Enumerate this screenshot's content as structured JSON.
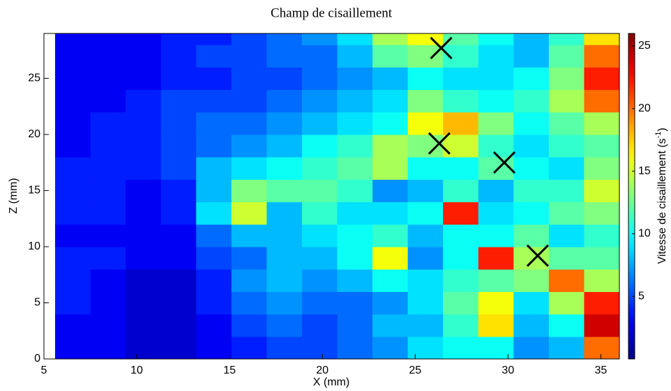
{
  "chart_data": {
    "type": "heatmap",
    "title": "Champ de cisaillement",
    "xlabel": "X (mm)",
    "ylabel": "Z (mm)",
    "colorbar_label": {
      "text": "Vitesse de cisaillement (s",
      "sup": "-1",
      "close": ")"
    },
    "colormap": "jet",
    "x": [
      6.55,
      8.45,
      10.35,
      12.25,
      14.15,
      16.05,
      17.95,
      19.85,
      21.75,
      23.65,
      25.55,
      27.45,
      29.35,
      31.25,
      33.15,
      35.05
    ],
    "y": [
      1,
      3,
      5,
      7,
      9,
      11,
      13,
      15,
      17,
      19,
      21,
      23,
      25,
      27,
      29
    ],
    "values": [
      [
        3,
        3,
        2,
        2,
        3,
        4,
        5,
        5,
        6,
        7,
        9,
        10,
        10,
        7,
        8,
        20
      ],
      [
        3,
        3,
        2,
        2,
        3,
        5,
        6,
        5,
        6,
        8,
        8,
        11,
        17,
        8,
        10,
        24
      ],
      [
        4,
        3,
        2,
        2,
        4,
        6,
        7,
        6,
        6,
        7,
        9,
        12,
        16,
        9,
        14,
        22
      ],
      [
        4,
        3,
        2,
        2,
        4,
        7,
        8,
        7,
        8,
        10,
        9,
        11,
        12,
        13,
        20,
        14
      ],
      [
        4,
        4,
        3,
        3,
        5,
        6,
        8,
        8,
        10,
        16,
        7,
        10,
        22,
        14,
        12,
        12
      ],
      [
        3,
        3,
        3,
        3,
        6,
        8,
        8,
        9,
        10,
        11,
        8,
        10,
        10,
        12,
        9,
        11
      ],
      [
        4,
        4,
        3,
        4,
        9,
        15,
        8,
        11,
        9,
        9,
        10,
        22,
        9,
        10,
        12,
        13
      ],
      [
        4,
        4,
        3,
        4,
        8,
        13,
        12,
        12,
        11,
        7,
        8,
        11,
        8,
        11,
        11,
        15
      ],
      [
        4,
        4,
        4,
        5,
        8,
        9,
        10,
        11,
        12,
        14,
        10,
        10,
        12,
        10,
        9,
        13
      ],
      [
        3,
        4,
        4,
        5,
        6,
        7,
        8,
        10,
        11,
        14,
        13,
        15,
        11,
        9,
        11,
        12
      ],
      [
        3,
        4,
        4,
        5,
        6,
        6,
        7,
        8,
        9,
        10,
        16,
        18,
        13,
        10,
        12,
        14
      ],
      [
        3,
        3,
        4,
        5,
        5,
        5,
        6,
        7,
        8,
        9,
        13,
        11,
        10,
        11,
        14,
        20
      ],
      [
        3,
        3,
        3,
        4,
        4,
        5,
        5,
        6,
        7,
        8,
        10,
        9,
        9,
        10,
        13,
        22
      ],
      [
        3,
        3,
        3,
        4,
        5,
        5,
        6,
        6,
        8,
        12,
        13,
        11,
        9,
        8,
        12,
        20
      ],
      [
        3,
        3,
        3,
        4,
        4,
        5,
        6,
        7,
        9,
        14,
        16,
        12,
        10,
        8,
        11,
        17
      ]
    ],
    "markers": {
      "x": [
        26.4,
        26.3,
        29.8,
        31.6
      ],
      "y": [
        27.7,
        19.2,
        17.5,
        9.2
      ],
      "color": "#000000"
    },
    "xlim": [
      5,
      36
    ],
    "ylim": [
      0,
      29
    ],
    "xticks": [
      5,
      10,
      15,
      20,
      25,
      30,
      35
    ],
    "yticks": [
      0,
      5,
      10,
      15,
      20,
      25
    ],
    "clim": [
      0,
      26
    ],
    "cticks": [
      5,
      10,
      15,
      20,
      25
    ]
  }
}
